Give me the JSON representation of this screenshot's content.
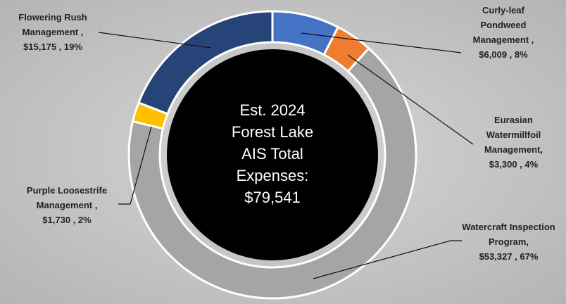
{
  "chart_data": {
    "type": "donut",
    "categories": [
      "Curly-leaf Pondweed Management ,",
      "Eurasian Watermillfoil Management,",
      "Watercraft Inspection Program,",
      "Purple Loosestrife Management ,",
      "Flowering Rush Management ,"
    ],
    "values": [
      6009,
      3300,
      53327,
      1730,
      15175
    ],
    "value_labels": [
      "$6,009 , 8%",
      "$3,300 , 4%",
      "$53,327 , 67%",
      "$1,730 , 2%",
      "$15,175 , 19%"
    ],
    "colors": [
      "#4472c4",
      "#ed7d31",
      "#a5a5a5",
      "#ffc000",
      "#264478"
    ],
    "center_text": [
      "Est. 2024",
      "Forest Lake",
      "AIS Total",
      "Expenses:",
      "$79,541"
    ]
  }
}
